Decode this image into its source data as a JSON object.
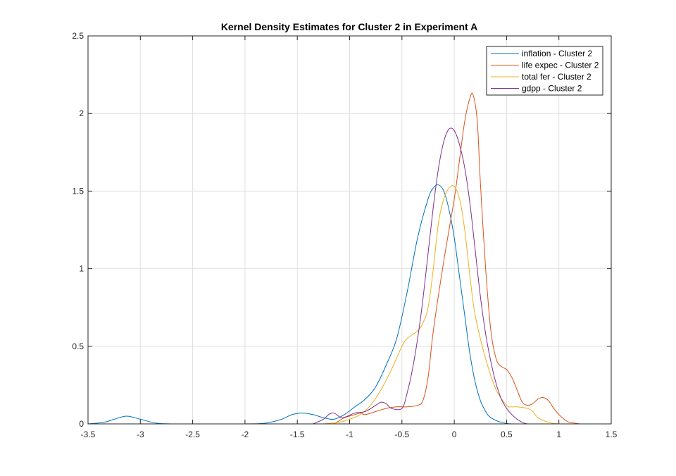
{
  "chart_data": {
    "type": "line",
    "title": "Kernel Density Estimates for Cluster 2 in Experiment A",
    "xlabel": "",
    "ylabel": "",
    "xlim": [
      -3.5,
      1.5
    ],
    "ylim": [
      0,
      2.5
    ],
    "xticks": [
      "-3.5",
      "-3",
      "-2.5",
      "-2",
      "-1.5",
      "-1",
      "-0.5",
      "0",
      "0.5",
      "1",
      "1.5"
    ],
    "yticks": [
      "0",
      "0.5",
      "1",
      "1.5",
      "2",
      "2.5"
    ],
    "grid": true,
    "legend_position": "top-right",
    "series": [
      {
        "name": "inflation - Cluster 2",
        "color": "#0072BD",
        "x": [
          -3.5,
          -3.35,
          -3.25,
          -3.13,
          -3.0,
          -2.85,
          -2.7,
          -2.4,
          -2.0,
          -1.8,
          -1.65,
          -1.55,
          -1.45,
          -1.35,
          -1.25,
          -1.15,
          -1.05,
          -0.95,
          -0.85,
          -0.75,
          -0.65,
          -0.55,
          -0.45,
          -0.35,
          -0.25,
          -0.2,
          -0.15,
          -0.1,
          -0.05,
          0.0,
          0.05,
          0.1,
          0.15,
          0.2,
          0.25,
          0.3,
          0.35,
          0.45,
          0.55,
          0.7,
          1.0,
          1.5
        ],
        "y": [
          0.0,
          0.01,
          0.03,
          0.05,
          0.03,
          0.005,
          0.0,
          0.0,
          0.0,
          0.005,
          0.03,
          0.06,
          0.07,
          0.06,
          0.04,
          0.03,
          0.06,
          0.11,
          0.16,
          0.24,
          0.38,
          0.55,
          0.85,
          1.2,
          1.45,
          1.52,
          1.54,
          1.5,
          1.38,
          1.2,
          0.95,
          0.7,
          0.45,
          0.27,
          0.15,
          0.08,
          0.04,
          0.01,
          0.0,
          0.0,
          0.0,
          0.0
        ]
      },
      {
        "name": "life expec - Cluster 2",
        "color": "#D95319",
        "x": [
          -1.15,
          -1.1,
          -1.05,
          -0.95,
          -0.9,
          -0.85,
          -0.75,
          -0.7,
          -0.65,
          -0.55,
          -0.45,
          -0.35,
          -0.3,
          -0.25,
          -0.2,
          -0.1,
          0.0,
          0.05,
          0.1,
          0.15,
          0.18,
          0.22,
          0.25,
          0.3,
          0.35,
          0.4,
          0.45,
          0.5,
          0.55,
          0.6,
          0.65,
          0.7,
          0.75,
          0.8,
          0.85,
          0.9,
          0.95,
          1.0,
          1.05,
          1.1,
          1.15,
          1.2
        ],
        "y": [
          0.0,
          0.02,
          0.04,
          0.06,
          0.07,
          0.06,
          0.08,
          0.09,
          0.1,
          0.11,
          0.11,
          0.12,
          0.15,
          0.3,
          0.6,
          1.05,
          1.45,
          1.7,
          1.95,
          2.1,
          2.12,
          1.95,
          1.55,
          1.0,
          0.6,
          0.42,
          0.37,
          0.35,
          0.3,
          0.22,
          0.14,
          0.12,
          0.13,
          0.16,
          0.17,
          0.15,
          0.1,
          0.06,
          0.03,
          0.01,
          0.005,
          0.0
        ]
      },
      {
        "name": "total fer - Cluster 2",
        "color": "#EDB120",
        "x": [
          -1.25,
          -1.1,
          -1.0,
          -0.9,
          -0.8,
          -0.7,
          -0.6,
          -0.5,
          -0.45,
          -0.35,
          -0.3,
          -0.25,
          -0.2,
          -0.15,
          -0.1,
          -0.05,
          0.0,
          0.05,
          0.1,
          0.15,
          0.2,
          0.3,
          0.4,
          0.5,
          0.55,
          0.6,
          0.7,
          0.75,
          0.8,
          0.9,
          1.0,
          1.1
        ],
        "y": [
          0.0,
          0.01,
          0.03,
          0.06,
          0.12,
          0.22,
          0.35,
          0.5,
          0.55,
          0.6,
          0.65,
          0.75,
          1.0,
          1.3,
          1.45,
          1.52,
          1.53,
          1.45,
          1.25,
          0.95,
          0.7,
          0.42,
          0.22,
          0.12,
          0.11,
          0.11,
          0.1,
          0.08,
          0.04,
          0.01,
          0.0,
          0.0
        ]
      },
      {
        "name": "gdpp - Cluster 2",
        "color": "#7E2F8E",
        "x": [
          -1.35,
          -1.25,
          -1.2,
          -1.15,
          -1.08,
          -1.02,
          -0.95,
          -0.85,
          -0.75,
          -0.7,
          -0.65,
          -0.6,
          -0.5,
          -0.45,
          -0.4,
          -0.35,
          -0.3,
          -0.25,
          -0.2,
          -0.15,
          -0.1,
          -0.05,
          0.0,
          0.05,
          0.1,
          0.15,
          0.2,
          0.25,
          0.3,
          0.35,
          0.4,
          0.45,
          0.5,
          0.55,
          0.6,
          0.65,
          0.7,
          0.8
        ],
        "y": [
          0.0,
          0.03,
          0.06,
          0.07,
          0.04,
          0.05,
          0.07,
          0.08,
          0.12,
          0.14,
          0.13,
          0.1,
          0.1,
          0.2,
          0.35,
          0.55,
          0.8,
          1.1,
          1.4,
          1.65,
          1.82,
          1.9,
          1.89,
          1.8,
          1.65,
          1.42,
          1.12,
          0.82,
          0.58,
          0.4,
          0.26,
          0.16,
          0.1,
          0.06,
          0.03,
          0.01,
          0.0,
          0.0
        ]
      }
    ]
  }
}
